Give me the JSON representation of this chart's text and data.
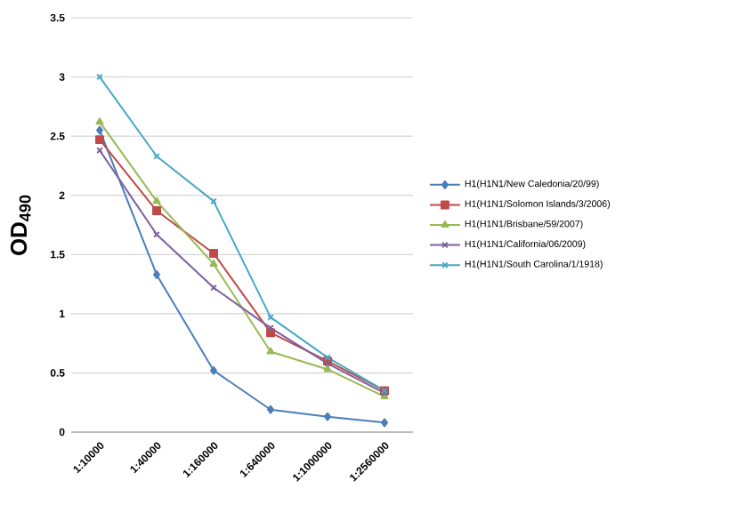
{
  "chart_data": {
    "type": "line",
    "ylabel": "OD$_{490}$",
    "categories": [
      "1:10000",
      "1:40000",
      "1:160000",
      "1:640000",
      "1:1000000",
      "1:2560000"
    ],
    "ylim": [
      0,
      3.5
    ],
    "yticks": [
      0,
      0.5,
      1,
      1.5,
      2,
      2.5,
      3,
      3.5
    ],
    "grid": "y",
    "legend": "right",
    "series": [
      {
        "name": "H1(H1N1/New Caledonia/20/99)",
        "color": "#4a7ebb",
        "marker": "diamond",
        "values": [
          2.55,
          1.33,
          0.52,
          0.19,
          0.13,
          0.08
        ]
      },
      {
        "name": "H1(H1N1/Solomon Islands/3/2006)",
        "color": "#be4b48",
        "marker": "square",
        "values": [
          2.47,
          1.87,
          1.51,
          0.84,
          0.6,
          0.35
        ]
      },
      {
        "name": "H1(H1N1/Brisbane/59/2007)",
        "color": "#98b954",
        "marker": "triangle",
        "values": [
          2.62,
          1.95,
          1.42,
          0.68,
          0.53,
          0.3
        ]
      },
      {
        "name": "H1(H1N1/California/06/2009)",
        "color": "#7d60a0",
        "marker": "cross",
        "values": [
          2.38,
          1.67,
          1.22,
          0.88,
          0.58,
          0.33
        ]
      },
      {
        "name": "H1(H1N1/South Carolina/1/1918)",
        "color": "#46aac5",
        "marker": "cross",
        "values": [
          3.0,
          2.33,
          1.95,
          0.97,
          0.63,
          0.35
        ]
      }
    ]
  }
}
